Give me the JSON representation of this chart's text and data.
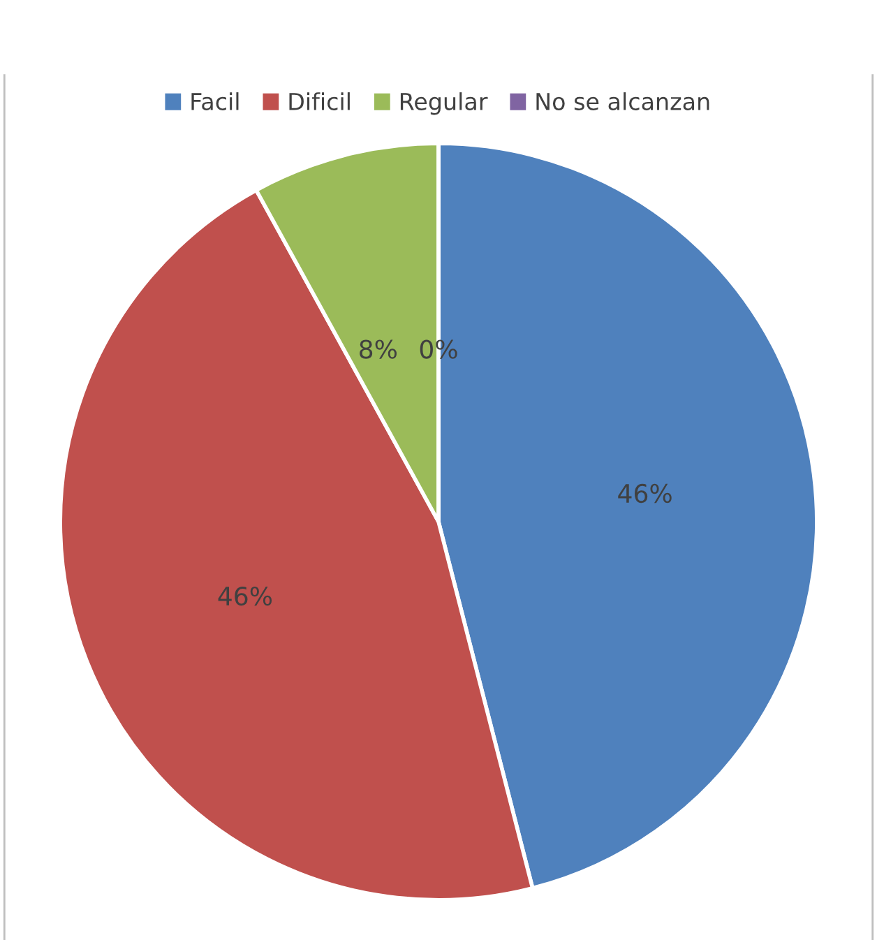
{
  "chart_data": {
    "type": "pie",
    "categories": [
      "Facil",
      "Dificil",
      "Regular",
      "No se alcanzan"
    ],
    "values": [
      46,
      46,
      8,
      0
    ],
    "value_labels": [
      "46%",
      "46%",
      "8%",
      "0%"
    ],
    "colors": [
      "#4f81bd",
      "#c0504d",
      "#9bbb59",
      "#8064a2"
    ],
    "legend": "top"
  }
}
